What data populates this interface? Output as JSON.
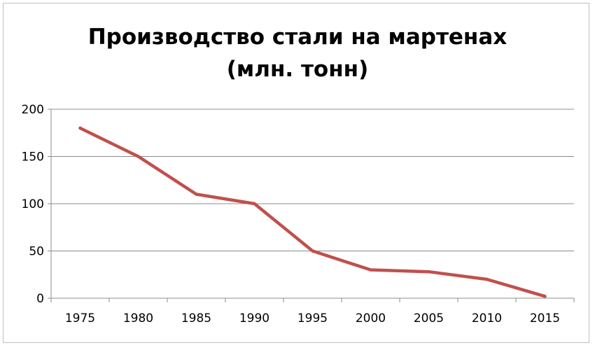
{
  "chart_data": {
    "type": "line",
    "title_lines": [
      "Производство стали на мартенах",
      "(млн. тонн)"
    ],
    "xlabel": "",
    "ylabel": "",
    "categories": [
      "1975",
      "1980",
      "1985",
      "1990",
      "1995",
      "2000",
      "2005",
      "2010",
      "2015"
    ],
    "series": [
      {
        "values": [
          180,
          150,
          110,
          100,
          50,
          30,
          28,
          20,
          2
        ],
        "color": "#C0504D"
      }
    ],
    "ylim": [
      0,
      200
    ],
    "yticks": [
      0,
      50,
      100,
      150,
      200
    ],
    "grid": true,
    "legend": "none"
  }
}
